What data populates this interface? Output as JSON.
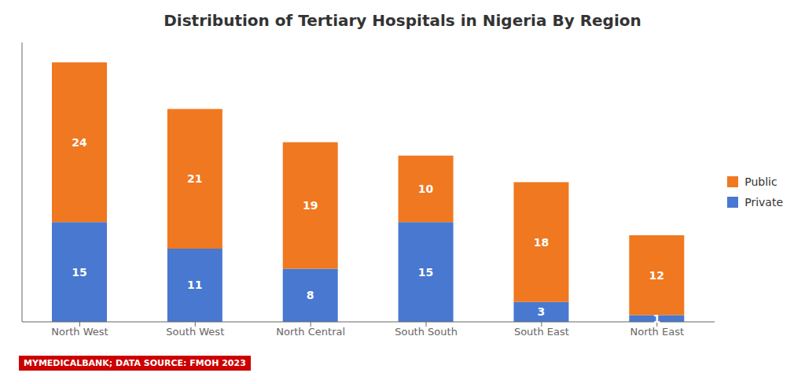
{
  "chart_data": {
    "type": "bar",
    "title": "Distribution of Tertiary Hospitals in Nigeria By Region",
    "categories": [
      "North West",
      "South West",
      "North Central",
      "South South",
      "South East",
      "North East"
    ],
    "series": [
      {
        "name": "Public",
        "color": "#F07820",
        "values": [
          24,
          21,
          19,
          10,
          18,
          12
        ]
      },
      {
        "name": "Private",
        "color": "#4878D0",
        "values": [
          15,
          11,
          8,
          15,
          3,
          1
        ]
      }
    ],
    "stacked": true,
    "data_labels": true,
    "ylim": [
      0,
      42
    ],
    "grid": false,
    "legend": "right",
    "tick_labels": "x",
    "annotations": [
      "MYMEDICALBANK; DATA SOURCE: FMOH 2023"
    ]
  }
}
